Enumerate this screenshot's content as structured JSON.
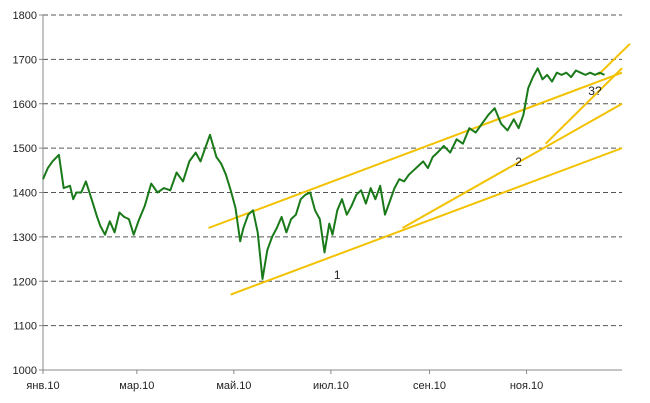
{
  "chart_data": {
    "type": "line",
    "title": "",
    "xlabel": "",
    "ylabel": "",
    "ylim": [
      1000,
      1800
    ],
    "yticks": [
      "1000",
      "1100",
      "1200",
      "1300",
      "1400",
      "1500",
      "1600",
      "1700",
      "1800"
    ],
    "xlim": [
      "2010-01-01",
      "2010-12-31"
    ],
    "xticks": [
      {
        "date": "2010-01-01",
        "label": "янв.10"
      },
      {
        "date": "2010-03-01",
        "label": "мар.10"
      },
      {
        "date": "2010-05-01",
        "label": "май.10"
      },
      {
        "date": "2010-07-01",
        "label": "июл.10"
      },
      {
        "date": "2010-09-01",
        "label": "сен.10"
      },
      {
        "date": "2010-11-01",
        "label": "ноя.10"
      }
    ],
    "grid": "horizontal dashed",
    "legend": "none",
    "colors": {
      "series": "#1a7a1a",
      "channel": "#f2c200",
      "grid": "#555555",
      "axis": "#888888"
    },
    "series": [
      {
        "x": [
          "2010-01-01",
          "2010-01-04",
          "2010-01-07",
          "2010-01-11",
          "2010-01-14",
          "2010-01-18",
          "2010-01-20",
          "2010-01-22",
          "2010-01-25",
          "2010-01-28",
          "2010-02-01",
          "2010-02-04",
          "2010-02-06",
          "2010-02-09",
          "2010-02-12",
          "2010-02-15",
          "2010-02-18",
          "2010-02-21",
          "2010-02-24",
          "2010-02-27",
          "2010-03-02",
          "2010-03-06",
          "2010-03-10",
          "2010-03-14",
          "2010-03-18",
          "2010-03-22",
          "2010-03-26",
          "2010-03-30",
          "2010-04-03",
          "2010-04-07",
          "2010-04-10",
          "2010-04-13",
          "2010-04-16",
          "2010-04-20",
          "2010-04-23",
          "2010-04-26",
          "2010-04-29",
          "2010-05-02",
          "2010-05-05",
          "2010-05-07",
          "2010-05-10",
          "2010-05-13",
          "2010-05-16",
          "2010-05-19",
          "2010-05-22",
          "2010-05-25",
          "2010-05-28",
          "2010-05-31",
          "2010-06-03",
          "2010-06-06",
          "2010-06-09",
          "2010-06-12",
          "2010-06-15",
          "2010-06-18",
          "2010-06-21",
          "2010-06-24",
          "2010-06-27",
          "2010-06-30",
          "2010-07-02",
          "2010-07-05",
          "2010-07-08",
          "2010-07-11",
          "2010-07-14",
          "2010-07-17",
          "2010-07-20",
          "2010-07-23",
          "2010-07-26",
          "2010-07-29",
          "2010-08-01",
          "2010-08-04",
          "2010-08-07",
          "2010-08-10",
          "2010-08-13",
          "2010-08-16",
          "2010-08-19",
          "2010-08-22",
          "2010-08-25",
          "2010-08-28",
          "2010-08-31",
          "2010-09-03",
          "2010-09-06",
          "2010-09-10",
          "2010-09-14",
          "2010-09-18",
          "2010-09-22",
          "2010-09-26",
          "2010-09-30",
          "2010-10-04",
          "2010-10-08",
          "2010-10-12",
          "2010-10-16",
          "2010-10-20",
          "2010-10-24",
          "2010-10-27",
          "2010-10-30",
          "2010-11-02",
          "2010-11-05",
          "2010-11-08",
          "2010-11-11",
          "2010-11-14",
          "2010-11-17",
          "2010-11-20",
          "2010-11-23",
          "2010-11-26",
          "2010-11-29",
          "2010-12-02",
          "2010-12-05",
          "2010-12-08",
          "2010-12-11",
          "2010-12-14",
          "2010-12-17",
          "2010-12-20"
        ],
        "values": [
          1430,
          1455,
          1470,
          1485,
          1410,
          1415,
          1385,
          1400,
          1400,
          1425,
          1380,
          1345,
          1325,
          1305,
          1335,
          1310,
          1355,
          1345,
          1340,
          1305,
          1335,
          1370,
          1420,
          1400,
          1410,
          1405,
          1445,
          1425,
          1470,
          1490,
          1470,
          1500,
          1530,
          1480,
          1465,
          1440,
          1405,
          1365,
          1290,
          1320,
          1350,
          1360,
          1310,
          1205,
          1270,
          1300,
          1320,
          1345,
          1310,
          1340,
          1350,
          1385,
          1395,
          1400,
          1360,
          1340,
          1265,
          1330,
          1305,
          1360,
          1385,
          1350,
          1370,
          1395,
          1405,
          1375,
          1410,
          1385,
          1415,
          1350,
          1380,
          1410,
          1430,
          1425,
          1440,
          1450,
          1460,
          1470,
          1455,
          1480,
          1490,
          1505,
          1490,
          1520,
          1510,
          1545,
          1535,
          1555,
          1575,
          1590,
          1555,
          1540,
          1565,
          1545,
          1575,
          1635,
          1660,
          1680,
          1655,
          1665,
          1650,
          1670,
          1665,
          1670,
          1660,
          1675,
          1670,
          1665,
          1670,
          1665,
          1670,
          1665
        ]
      }
    ],
    "channel_lines": [
      {
        "x": [
          "2010-04-15",
          "2010-12-31"
        ],
        "y": [
          1320,
          1670
        ]
      },
      {
        "x": [
          "2010-04-29",
          "2010-12-31"
        ],
        "y": [
          1170,
          1500
        ]
      },
      {
        "x": [
          "2010-08-15",
          "2010-12-31"
        ],
        "y": [
          1320,
          1600
        ]
      },
      {
        "x": [
          "2010-11-13",
          "2010-12-31"
        ],
        "y": [
          1510,
          1680
        ]
      },
      {
        "x": [
          "2010-12-16",
          "2011-01-05"
        ],
        "y": [
          1665,
          1735
        ]
      }
    ],
    "annotations": [
      {
        "text": "1",
        "x": "2010-07-05",
        "y": 1205
      },
      {
        "text": "2",
        "x": "2010-10-27",
        "y": 1460
      },
      {
        "text": "3?",
        "x": "2010-12-14",
        "y": 1620
      }
    ]
  }
}
